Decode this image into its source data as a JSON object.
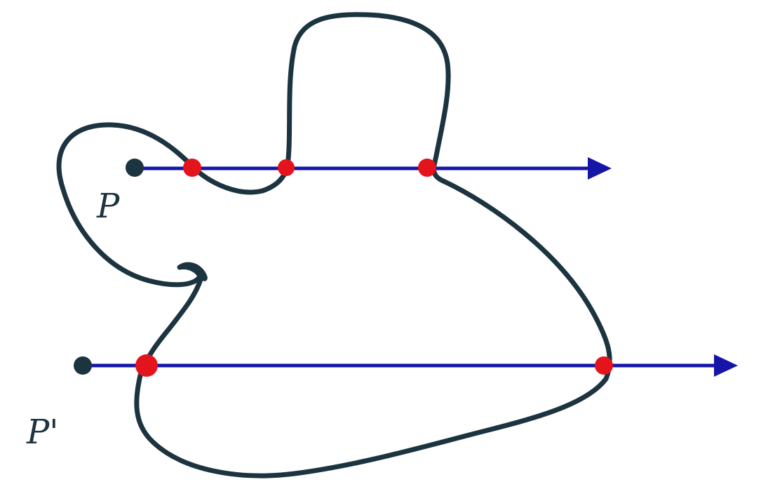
{
  "diagram": {
    "labels": {
      "p": "P",
      "p_prime": "P'"
    },
    "colors": {
      "curve": "#1c3340",
      "ray": "#1515a8",
      "intersection": "#e3141c",
      "point": "#1c3340",
      "background": "#ffffff"
    },
    "rays": [
      {
        "name": "ray-from-p",
        "intersections": 3
      },
      {
        "name": "ray-from-p-prime",
        "intersections": 2
      }
    ]
  }
}
